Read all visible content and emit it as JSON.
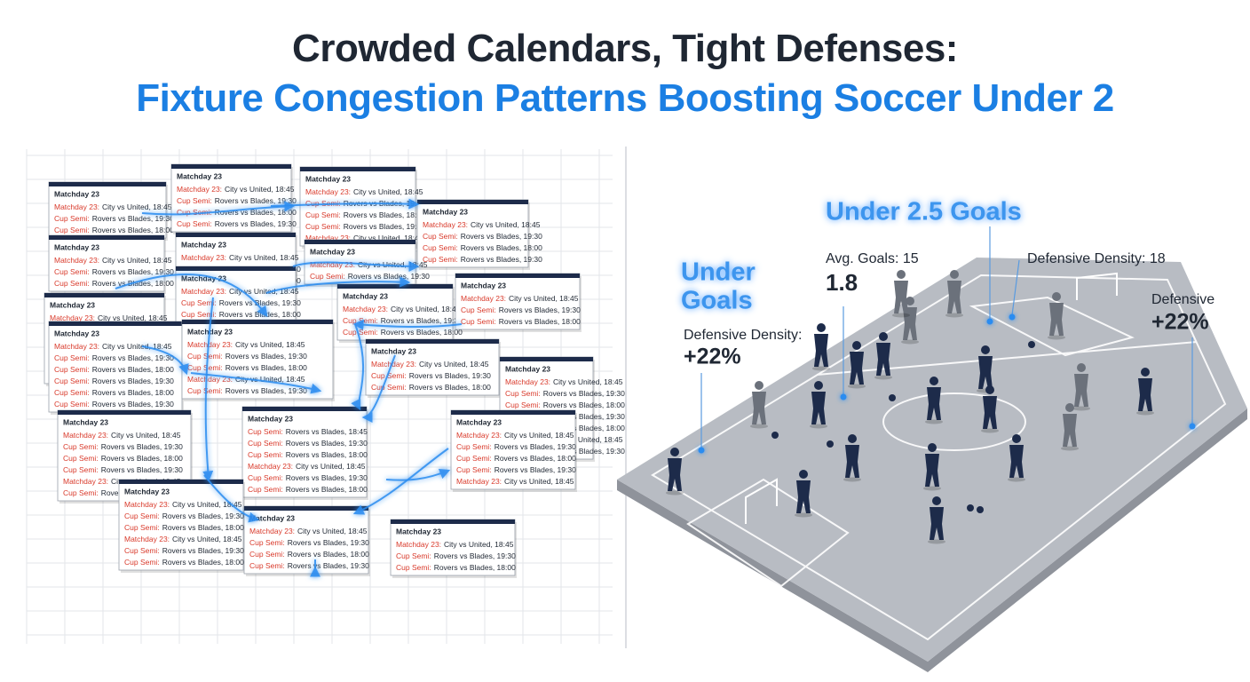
{
  "header": {
    "line1": "Crowded Calendars, Tight Defenses:",
    "line2": "Fixture Congestion Patterns Boosting Soccer Under 2"
  },
  "cards": [
    {
      "title": "Matchday 23",
      "rows": [
        [
          "Matchday 23:",
          "City vs United, 18:45"
        ],
        [
          "Cup Semi:",
          "Rovers vs Blades, 19:30"
        ],
        [
          "Cup Semi:",
          "Rovers vs Blades, 18:00"
        ]
      ]
    },
    {
      "title": "Matchday 23",
      "rows": [
        [
          "Matchday 23:",
          "City vs United, 18:45"
        ],
        [
          "Cup Semi:",
          "Rovers vs Blades, 19:30"
        ],
        [
          "Cup Semi:",
          "Rovers vs Blades, 18:00"
        ],
        [
          "Cup Semi:",
          "Rovers vs Blades, 19:30"
        ]
      ]
    },
    {
      "title": "Matchday 23",
      "rows": [
        [
          "Matchday 23:",
          "City vs United, 18:45"
        ],
        [
          "Cup Semi:",
          "Rovers vs Blades, 19:30"
        ],
        [
          "Cup Semi:",
          "Rovers vs Blades, 18:00"
        ],
        [
          "Cup Semi:",
          "Rovers vs Blades, 19:30"
        ],
        [
          "Matchday 23:",
          "City vs United, 18:45"
        ]
      ]
    },
    {
      "title": "Matchday 23",
      "rows": [
        [
          "Matchday 23:",
          "City vs United, 18:45"
        ],
        [
          "Cup Semi:",
          "Rovers vs Blades, 19:30"
        ],
        [
          "Cup Semi:",
          "Rovers vs Blades, 18:00"
        ],
        [
          "Cup Semi:",
          "Rovers vs Blades, 19:30"
        ]
      ]
    },
    {
      "title": "Matchday 23",
      "rows": [
        [
          "Matchday 23:",
          "City vs United, 18:45"
        ],
        [
          "Cup Semi:",
          "Rovers vs Blades, 19:30"
        ],
        [
          "Cup Semi:",
          "Rovers vs Blades, 18:00"
        ]
      ]
    },
    {
      "title": "Matchday 23",
      "rows": [
        [
          "Matchday 23:",
          "City vs United, 18:45"
        ],
        [
          "Cup Semi:",
          "Rovers vs Blades, 19:30"
        ],
        [
          "Cup Semi:",
          "Rovers vs Blades, 18:00"
        ]
      ]
    },
    {
      "title": "Matchday 23",
      "rows": [
        [
          "Matchday 23:",
          "City vs United, 18:45"
        ],
        [
          "Cup Semi:",
          "Rovers vs Blades, 19:30"
        ]
      ]
    },
    {
      "title": "Matchday 23",
      "rows": [
        [
          "Matchday 23:",
          "City vs United, 18:45"
        ],
        [
          "Cup Semi:",
          "Rovers vs Blades, 19:30"
        ],
        [
          "Cup Semi:",
          "Rovers vs Blades, 18:00"
        ]
      ]
    },
    {
      "title": "Matchday 23",
      "rows": [
        [
          "Matchday 23:",
          "City vs United, 18:45"
        ],
        [
          "Cup Semi:",
          "Rovers vs Blades, 19:30"
        ],
        [
          "Cup Semi:",
          "Rovers vs Blades, 18:00"
        ]
      ]
    },
    {
      "title": "Matchday 23",
      "rows": [
        [
          "Matchday 23:",
          "City vs United, 18:45"
        ],
        [
          "Cup Semi:",
          "Rovers vs Blades, 19:30"
        ],
        [
          "Cup Semi:",
          "Rovers vs Blades, 18:00"
        ]
      ]
    },
    {
      "title": "Matchday 23",
      "rows": [
        [
          "Matchday 23:",
          "City vs United, 18:45"
        ],
        [
          "Cup Semi:",
          "Rovers vs Blades, 19:30"
        ],
        [
          "Cup Semi:",
          "Rovers vs Blades, 18:00"
        ],
        [
          "Cup Semi:",
          "Rovers vs Blades, 19:30"
        ],
        [
          "Cup Semi:",
          "Rovers vs Blades, 18:00"
        ],
        [
          "Matchday 23:",
          "City vs United, 18:45"
        ]
      ]
    },
    {
      "title": "Matchday 23",
      "rows": [
        [
          "Matchday 23:",
          "City vs United, 18:45"
        ],
        [
          "Cup Semi:",
          "Rovers vs Blades, 19:30"
        ],
        [
          "Cup Semi:",
          "Rovers vs Blades, 18:00"
        ],
        [
          "Cup Semi:",
          "Rovers vs Blades, 19:30"
        ],
        [
          "Cup Semi:",
          "Rovers vs Blades, 18:00"
        ],
        [
          "Cup Semi:",
          "Rovers vs Blades, 19:30"
        ]
      ]
    },
    {
      "title": "Matchday 23",
      "rows": [
        [
          "Matchday 23:",
          "City vs United, 18:45"
        ],
        [
          "Cup Semi:",
          "Rovers vs Blades, 19:30"
        ],
        [
          "Cup Semi:",
          "Rovers vs Blades, 18:00"
        ],
        [
          "Matchday 23:",
          "City vs United, 18:45"
        ],
        [
          "Cup Semi:",
          "Rovers vs Blades, 19:30"
        ]
      ]
    },
    {
      "title": "Matchday 23",
      "rows": [
        [
          "Matchday 23:",
          "City vs United, 18:45"
        ],
        [
          "Cup Semi:",
          "Rovers vs Blades, 19:30"
        ],
        [
          "Cup Semi:",
          "Rovers vs Blades, 18:00"
        ]
      ]
    },
    {
      "title": "Matchday 23",
      "rows": [
        [
          "Matchday 23:",
          "City vs United, 18:45"
        ],
        [
          "Cup Semi:",
          "Rovers vs Blades, 19:30"
        ],
        [
          "Cup Semi:",
          "Rovers vs Blades, 18:00"
        ],
        [
          "Cup Semi:",
          "Rovers vs Blades, 19:30"
        ],
        [
          "Cup Semi:",
          "Rovers vs Blades, 18:00"
        ],
        [
          "Matchday 23:",
          "City vs United, 18:45"
        ],
        [
          "Cup Semi:",
          "Rovers vs Blades, 19:30"
        ]
      ]
    },
    {
      "title": "Matchday 23",
      "rows": [
        [
          "Matchday 23:",
          "City vs United, 18:45"
        ],
        [
          "Cup Semi:",
          "Rovers vs Blades, 19:30"
        ],
        [
          "Cup Semi:",
          "Rovers vs Blades, 18:00"
        ],
        [
          "Cup Semi:",
          "Rovers vs Blades, 19:30"
        ],
        [
          "Matchday 23:",
          "City vs United, 18:45"
        ],
        [
          "Cup Semi:",
          "Rovers vs Blades, 19:30"
        ]
      ]
    },
    {
      "title": "Matchday 23",
      "rows": [
        [
          "Cup Semi:",
          "Rovers vs Blades, 18:45"
        ],
        [
          "Cup Semi:",
          "Rovers vs Blades, 19:30"
        ],
        [
          "Cup Semi:",
          "Rovers vs Blades, 18:00"
        ],
        [
          "Matchday 23:",
          "City vs United, 18:45"
        ],
        [
          "Cup Semi:",
          "Rovers vs Blades, 19:30"
        ],
        [
          "Cup Semi:",
          "Rovers vs Blades, 18:00"
        ]
      ]
    },
    {
      "title": "Matchday 23",
      "rows": [
        [
          "Matchday 23:",
          "City vs United, 18:45"
        ],
        [
          "Cup Semi:",
          "Rovers vs Blades, 19:30"
        ],
        [
          "Cup Semi:",
          "Rovers vs Blades, 18:00"
        ],
        [
          "Cup Semi:",
          "Rovers vs Blades, 19:30"
        ],
        [
          "Matchday 23:",
          "City vs United, 18:45"
        ]
      ]
    },
    {
      "title": "Matchday 23",
      "rows": [
        [
          "Matchday 23:",
          "City vs United, 18:45"
        ],
        [
          "Cup Semi:",
          "Rovers vs Blades, 19:30"
        ],
        [
          "Cup Semi:",
          "Rovers vs Blades, 18:00"
        ],
        [
          "Matchday 23:",
          "City vs United, 18:45"
        ],
        [
          "Cup Semi:",
          "Rovers vs Blades, 19:30"
        ],
        [
          "Cup Semi:",
          "Rovers vs Blades, 18:00"
        ]
      ]
    },
    {
      "title": "Matchday 23",
      "rows": [
        [
          "Matchday 23:",
          "City vs United, 18:45"
        ],
        [
          "Cup Semi:",
          "Rovers vs Blades, 19:30"
        ],
        [
          "Cup Semi:",
          "Rovers vs Blades, 18:00"
        ],
        [
          "Cup Semi:",
          "Rovers vs Blades, 19:30"
        ]
      ]
    },
    {
      "title": "Matchday 23",
      "rows": [
        [
          "Matchday 23:",
          "City vs United, 18:45"
        ],
        [
          "Cup Semi:",
          "Rovers vs Blades, 19:30"
        ],
        [
          "Cup Semi:",
          "Rovers vs Blades, 18:00"
        ]
      ]
    }
  ],
  "pitch": {
    "headline": "Under 2.5 Goals",
    "left_title": [
      "Under",
      "Goals"
    ],
    "left_label": "Defensive Density:",
    "left_value": "+22%",
    "avg_label": "Avg. Goals: 15",
    "avg_value": "1.8",
    "density_label": "Defensive Density: 18",
    "right_label": "Defensive",
    "right_value": "+22%"
  }
}
